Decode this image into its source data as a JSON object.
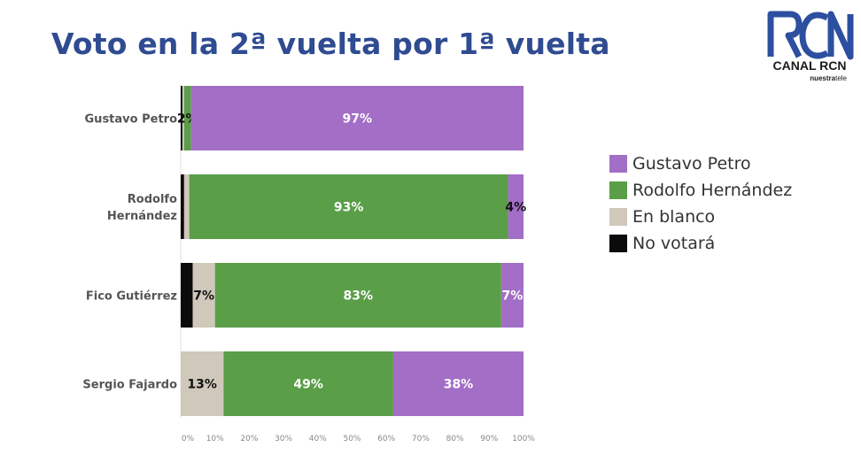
{
  "header": {
    "title": "Voto en la 2ª vuelta por 1ª vuelta"
  },
  "logo": {
    "text": "CANAL RCN",
    "tagline_bold": "nuestra",
    "tagline_rest": "tele"
  },
  "colors": {
    "petro": "#a36ec6",
    "hernandez": "#5a9e48",
    "blanco": "#cfc8bb",
    "no_votara": "#0b0b0b"
  },
  "chart_data": {
    "type": "bar",
    "orientation": "horizontal",
    "stacked": true,
    "title": "",
    "xlabel": "",
    "ylabel": "",
    "xlim": [
      0,
      100
    ],
    "x_ticks": [
      "0%",
      "10%",
      "20%",
      "30%",
      "40%",
      "50%",
      "60%",
      "70%",
      "80%",
      "90%",
      "100%"
    ],
    "categories": [
      "Gustavo Petro",
      "Rodolfo Hernández",
      "Fico Gutiérrez",
      "Sergio Fajardo"
    ],
    "category_lines": [
      [
        "Gustavo Petro"
      ],
      [
        "Rodolfo",
        "Hernández"
      ],
      [
        "Fico Gutiérrez"
      ],
      [
        "Sergio Fajardo"
      ]
    ],
    "series": [
      {
        "name": "No votará",
        "color": "#0b0b0b",
        "values": [
          0.5,
          1,
          3.5,
          0
        ],
        "labels": [
          "",
          "",
          "",
          ""
        ]
      },
      {
        "name": "En blanco",
        "color": "#cfc8bb",
        "values": [
          0.5,
          1.5,
          6.5,
          12.5
        ],
        "labels": [
          "",
          "",
          "7%",
          "13%"
        ]
      },
      {
        "name": "Rodolfo Hernández",
        "color": "#5a9e48",
        "values": [
          2,
          93,
          83.5,
          49.5
        ],
        "labels": [
          "2%",
          "93%",
          "83%",
          "49%"
        ]
      },
      {
        "name": "Gustavo Petro",
        "color": "#a36ec6",
        "values": [
          97,
          4.5,
          6.5,
          38
        ],
        "labels": [
          "97%",
          "4%",
          "7%",
          "38%"
        ]
      }
    ],
    "legend_position": "right",
    "grid": false
  },
  "legend": {
    "items": [
      {
        "label": "Gustavo Petro",
        "color": "#a36ec6"
      },
      {
        "label": "Rodolfo Hernández",
        "color": "#5a9e48"
      },
      {
        "label": "En blanco",
        "color": "#cfc8bb"
      },
      {
        "label": "No votará",
        "color": "#0b0b0b"
      }
    ]
  }
}
